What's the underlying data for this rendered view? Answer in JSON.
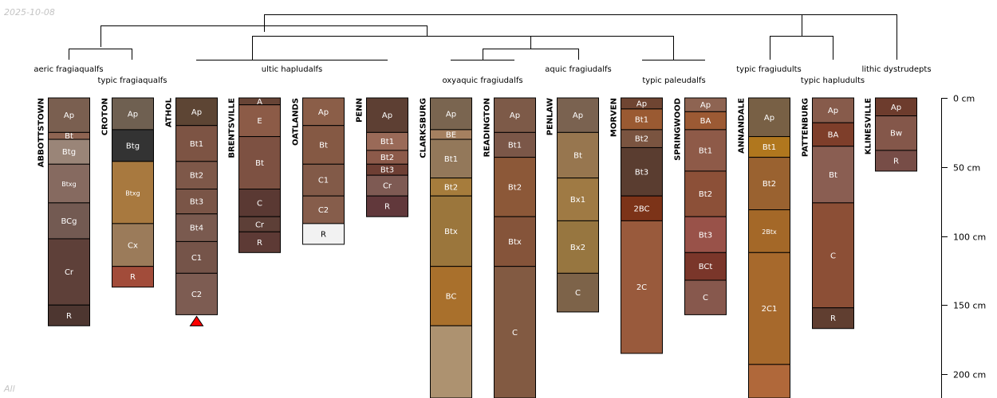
{
  "chart_data": {
    "type": "soil-profile-sketch",
    "date_label": "2025-10-08",
    "footer_label": "All",
    "depth_unit": "cm",
    "axis": {
      "ticks": [
        {
          "depth": 0,
          "label": "0 cm"
        },
        {
          "depth": 50,
          "label": "50 cm"
        },
        {
          "depth": 100,
          "label": "100 cm"
        },
        {
          "depth": 150,
          "label": "150 cm"
        },
        {
          "depth": 200,
          "label": "200 cm"
        }
      ]
    },
    "profiles": [
      {
        "name": "ABBOTTSTOWN",
        "horizons": [
          {
            "name": "Ap",
            "top": 0,
            "bottom": 25,
            "color": "#7a5f50"
          },
          {
            "name": "Bt",
            "top": 25,
            "bottom": 30,
            "color": "#8e6452"
          },
          {
            "name": "Btg",
            "top": 30,
            "bottom": 48,
            "color": "#9a8578"
          },
          {
            "name": "Btxg",
            "top": 48,
            "bottom": 76,
            "color": "#866a60"
          },
          {
            "name": "BCg",
            "top": 76,
            "bottom": 102,
            "color": "#735a52"
          },
          {
            "name": "Cr",
            "top": 102,
            "bottom": 150,
            "color": "#5e4039"
          },
          {
            "name": "R",
            "top": 150,
            "bottom": 165,
            "color": "#4d3630"
          }
        ]
      },
      {
        "name": "CROTON",
        "horizons": [
          {
            "name": "Ap",
            "top": 0,
            "bottom": 23,
            "color": "#6f6051"
          },
          {
            "name": "Btg",
            "top": 23,
            "bottom": 46,
            "color": "#333333"
          },
          {
            "name": "Btxg",
            "top": 46,
            "bottom": 91,
            "color": "#a8793f"
          },
          {
            "name": "Cx",
            "top": 91,
            "bottom": 122,
            "color": "#9b7b5a"
          },
          {
            "name": "R",
            "top": 122,
            "bottom": 137,
            "color": "#a24c3a"
          }
        ]
      },
      {
        "name": "ATHOL",
        "truncated": true,
        "horizons": [
          {
            "name": "Ap",
            "top": 0,
            "bottom": 20,
            "color": "#5d4534"
          },
          {
            "name": "Bt1",
            "top": 20,
            "bottom": 46,
            "color": "#7d5444"
          },
          {
            "name": "Bt2",
            "top": 46,
            "bottom": 66,
            "color": "#7e5849"
          },
          {
            "name": "Bt3",
            "top": 66,
            "bottom": 84,
            "color": "#7a5547"
          },
          {
            "name": "Bt4",
            "top": 84,
            "bottom": 104,
            "color": "#7a5a4f"
          },
          {
            "name": "C1",
            "top": 104,
            "bottom": 127,
            "color": "#755449"
          },
          {
            "name": "C2",
            "top": 127,
            "bottom": 157,
            "color": "#7d5c52"
          }
        ]
      },
      {
        "name": "BRENTSVILLE",
        "horizons": [
          {
            "name": "A",
            "top": 0,
            "bottom": 5,
            "color": "#674436"
          },
          {
            "name": "E",
            "top": 5,
            "bottom": 28,
            "color": "#8c5b47"
          },
          {
            "name": "Bt",
            "top": 28,
            "bottom": 66,
            "color": "#7d5142"
          },
          {
            "name": "C",
            "top": 66,
            "bottom": 86,
            "color": "#5a3933"
          },
          {
            "name": "Cr",
            "top": 86,
            "bottom": 97,
            "color": "#5d3f37"
          },
          {
            "name": "R",
            "top": 97,
            "bottom": 112,
            "color": "#5d3a35"
          }
        ]
      },
      {
        "name": "OATLANDS",
        "horizons": [
          {
            "name": "Ap",
            "top": 0,
            "bottom": 20,
            "color": "#8b5e48"
          },
          {
            "name": "Bt",
            "top": 20,
            "bottom": 48,
            "color": "#855944"
          },
          {
            "name": "C1",
            "top": 48,
            "bottom": 71,
            "color": "#825a48"
          },
          {
            "name": "C2",
            "top": 71,
            "bottom": 91,
            "color": "#865d4b"
          },
          {
            "name": "R",
            "top": 91,
            "bottom": 106,
            "color": "#f2f2f2"
          }
        ]
      },
      {
        "name": "PENN",
        "horizons": [
          {
            "name": "Ap",
            "top": 0,
            "bottom": 25,
            "color": "#5d3f33"
          },
          {
            "name": "Bt1",
            "top": 25,
            "bottom": 38,
            "color": "#9a6a58"
          },
          {
            "name": "Bt2",
            "top": 38,
            "bottom": 48,
            "color": "#8c5a4a"
          },
          {
            "name": "Bt3",
            "top": 48,
            "bottom": 56,
            "color": "#6e3f34"
          },
          {
            "name": "Cr",
            "top": 56,
            "bottom": 71,
            "color": "#7e5a53"
          },
          {
            "name": "R",
            "top": 71,
            "bottom": 86,
            "color": "#61383b"
          }
        ]
      },
      {
        "name": "CLARKSBURG",
        "horizons": [
          {
            "name": "Ap",
            "top": 0,
            "bottom": 23,
            "color": "#7a6550"
          },
          {
            "name": "BE",
            "top": 23,
            "bottom": 30,
            "color": "#a58060"
          },
          {
            "name": "Bt1",
            "top": 30,
            "bottom": 58,
            "color": "#93785a"
          },
          {
            "name": "Bt2",
            "top": 58,
            "bottom": 71,
            "color": "#a67c3c"
          },
          {
            "name": "Btx",
            "top": 71,
            "bottom": 122,
            "color": "#9b763c"
          },
          {
            "name": "BC",
            "top": 122,
            "bottom": 165,
            "color": "#a9702c"
          },
          {
            "name": "",
            "top": 165,
            "bottom": 220,
            "color": "#ad9270"
          }
        ]
      },
      {
        "name": "READINGTON",
        "horizons": [
          {
            "name": "Ap",
            "top": 0,
            "bottom": 25,
            "color": "#7d5a48"
          },
          {
            "name": "Bt1",
            "top": 25,
            "bottom": 43,
            "color": "#7b5748"
          },
          {
            "name": "Bt2",
            "top": 43,
            "bottom": 86,
            "color": "#8c5838"
          },
          {
            "name": "Btx",
            "top": 86,
            "bottom": 122,
            "color": "#85543a"
          },
          {
            "name": "C",
            "top": 122,
            "bottom": 220,
            "color": "#825a42"
          }
        ]
      },
      {
        "name": "PENLAW",
        "horizons": [
          {
            "name": "Ap",
            "top": 0,
            "bottom": 25,
            "color": "#7a6250"
          },
          {
            "name": "Bt",
            "top": 25,
            "bottom": 58,
            "color": "#97764f"
          },
          {
            "name": "Bx1",
            "top": 58,
            "bottom": 89,
            "color": "#9f7a44"
          },
          {
            "name": "Bx2",
            "top": 89,
            "bottom": 127,
            "color": "#977640"
          },
          {
            "name": "C",
            "top": 127,
            "bottom": 155,
            "color": "#7d6349"
          }
        ]
      },
      {
        "name": "MORVEN",
        "horizons": [
          {
            "name": "Ap",
            "top": 0,
            "bottom": 8,
            "color": "#6f4532"
          },
          {
            "name": "Bt1",
            "top": 8,
            "bottom": 23,
            "color": "#9a5a32"
          },
          {
            "name": "Bt2",
            "top": 23,
            "bottom": 36,
            "color": "#7a5440"
          },
          {
            "name": "Bt3",
            "top": 36,
            "bottom": 71,
            "color": "#5a3d30"
          },
          {
            "name": "2BC",
            "top": 71,
            "bottom": 89,
            "color": "#7c3318"
          },
          {
            "name": "2C",
            "top": 89,
            "bottom": 185,
            "color": "#995a3c"
          }
        ]
      },
      {
        "name": "SPRINGWOOD",
        "horizons": [
          {
            "name": "Ap",
            "top": 0,
            "bottom": 10,
            "color": "#8e6452"
          },
          {
            "name": "BA",
            "top": 10,
            "bottom": 23,
            "color": "#9c5a34"
          },
          {
            "name": "Bt1",
            "top": 23,
            "bottom": 53,
            "color": "#8e5a48"
          },
          {
            "name": "Bt2",
            "top": 53,
            "bottom": 86,
            "color": "#8c5038"
          },
          {
            "name": "Bt3",
            "top": 86,
            "bottom": 112,
            "color": "#995249"
          },
          {
            "name": "BCt",
            "top": 112,
            "bottom": 132,
            "color": "#7a362a"
          },
          {
            "name": "C",
            "top": 132,
            "bottom": 157,
            "color": "#87584d"
          }
        ]
      },
      {
        "name": "ANNANDALE",
        "horizons": [
          {
            "name": "Ap",
            "top": 0,
            "bottom": 28,
            "color": "#786045"
          },
          {
            "name": "Bt1",
            "top": 28,
            "bottom": 43,
            "color": "#b0771e"
          },
          {
            "name": "Bt2",
            "top": 43,
            "bottom": 81,
            "color": "#9a6230"
          },
          {
            "name": "2Btx",
            "top": 81,
            "bottom": 112,
            "color": "#a46828"
          },
          {
            "name": "2C1",
            "top": 112,
            "bottom": 193,
            "color": "#a7692c"
          },
          {
            "name": "",
            "top": 193,
            "bottom": 220,
            "color": "#b0683a"
          }
        ]
      },
      {
        "name": "PATTENBURG",
        "horizons": [
          {
            "name": "Ap",
            "top": 0,
            "bottom": 18,
            "color": "#875b4b"
          },
          {
            "name": "BA",
            "top": 18,
            "bottom": 35,
            "color": "#7e3e2a"
          },
          {
            "name": "Bt",
            "top": 35,
            "bottom": 76,
            "color": "#8a5e52"
          },
          {
            "name": "C",
            "top": 76,
            "bottom": 152,
            "color": "#8c4f36"
          },
          {
            "name": "R",
            "top": 152,
            "bottom": 167,
            "color": "#603e30"
          }
        ]
      },
      {
        "name": "KLINESVILLE",
        "horizons": [
          {
            "name": "Ap",
            "top": 0,
            "bottom": 13,
            "color": "#6d3c2d"
          },
          {
            "name": "Bw",
            "top": 13,
            "bottom": 38,
            "color": "#84574a"
          },
          {
            "name": "R",
            "top": 38,
            "bottom": 53,
            "color": "#774d47"
          }
        ]
      }
    ],
    "taxa": [
      {
        "label": "aeric fragiaqualfs"
      },
      {
        "label": "typic fragiaqualfs"
      },
      {
        "label": "ultic hapludalfs"
      },
      {
        "label": "oxyaquic fragiudalfs"
      },
      {
        "label": "aquic fragiudalfs"
      },
      {
        "label": "typic paleudalfs"
      },
      {
        "label": "typic fragiudults"
      },
      {
        "label": "typic hapludults"
      },
      {
        "label": "lithic dystrudepts"
      }
    ]
  }
}
